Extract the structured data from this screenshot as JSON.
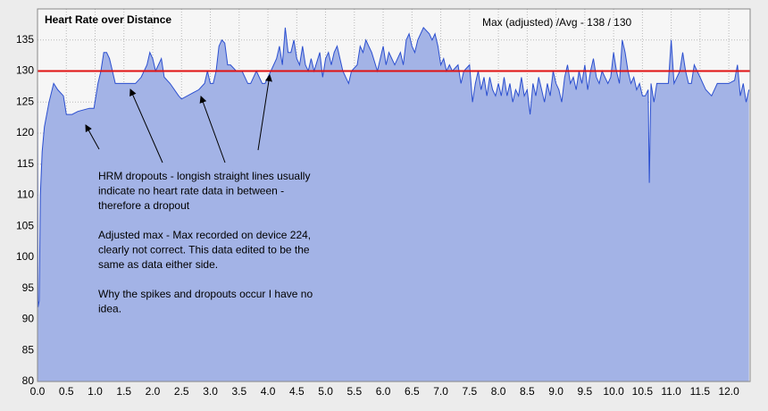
{
  "chart_data": {
    "type": "area",
    "title": "Heart Rate over Distance",
    "stats_label": "Max (adjusted) /Avg - 138 / 130",
    "annotation_paragraphs": [
      [
        "HRM dropouts - longish straight lines usually",
        "indicate no heart rate data in between -",
        "therefore a dropout"
      ],
      [
        "Adjusted max - Max recorded on device 224,",
        "clearly not correct.   This data edited to be the",
        "same as data either side."
      ],
      [
        "Why the spikes and dropouts occur I have no",
        "idea."
      ]
    ],
    "color": "#2b4fd0",
    "fill": "#a3b3e6",
    "avg_line": 130,
    "avg_line_color": "#e01010",
    "grid": true,
    "xlim": [
      0,
      12.37
    ],
    "ylim": [
      80,
      140
    ],
    "xticks": [
      {
        "value": 0,
        "label": "0.0"
      },
      0.5,
      {
        "value": 1,
        "label": "1.0"
      },
      1.5,
      {
        "value": 2,
        "label": "2.0"
      },
      2.5,
      {
        "value": 3,
        "label": "3.0"
      },
      3.5,
      {
        "value": 4,
        "label": "4.0"
      },
      4.5,
      {
        "value": 5,
        "label": "5.0"
      },
      5.5,
      {
        "value": 6,
        "label": "6.0"
      },
      6.5,
      {
        "value": 7,
        "label": "7.0"
      },
      7.5,
      {
        "value": 8,
        "label": "8.0"
      },
      8.5,
      {
        "value": 9,
        "label": "9.0"
      },
      9.5,
      {
        "value": 10,
        "label": "10.0"
      },
      10.5,
      {
        "value": 11,
        "label": "11.0"
      },
      11.5,
      {
        "value": 12,
        "label": "12.0"
      }
    ],
    "yticks": [
      80,
      85,
      90,
      95,
      100,
      105,
      110,
      115,
      120,
      125,
      130,
      135
    ],
    "x": [
      0,
      0.01,
      0.03,
      0.05,
      0.08,
      0.12,
      0.2,
      0.28,
      0.35,
      0.45,
      0.5,
      0.6,
      0.7,
      0.9,
      0.98,
      1.05,
      1.1,
      1.15,
      1.2,
      1.25,
      1.3,
      1.35,
      1.6,
      1.7,
      1.8,
      1.9,
      1.95,
      2,
      2.05,
      2.15,
      2.2,
      2.3,
      2.45,
      2.5,
      2.7,
      2.8,
      2.9,
      2.95,
      3,
      3.05,
      3.1,
      3.15,
      3.2,
      3.25,
      3.3,
      3.35,
      3.45,
      3.55,
      3.65,
      3.7,
      3.8,
      3.9,
      3.95,
      4.05,
      4.15,
      4.2,
      4.25,
      4.3,
      4.35,
      4.4,
      4.45,
      4.5,
      4.55,
      4.6,
      4.65,
      4.7,
      4.75,
      4.8,
      4.9,
      4.95,
      5,
      5.05,
      5.1,
      5.15,
      5.2,
      5.25,
      5.3,
      5.4,
      5.45,
      5.55,
      5.6,
      5.65,
      5.7,
      5.75,
      5.8,
      5.9,
      6,
      6.05,
      6.1,
      6.2,
      6.3,
      6.35,
      6.4,
      6.45,
      6.5,
      6.55,
      6.6,
      6.7,
      6.8,
      6.85,
      6.9,
      6.95,
      7,
      7.05,
      7.1,
      7.15,
      7.2,
      7.3,
      7.35,
      7.4,
      7.5,
      7.55,
      7.6,
      7.65,
      7.7,
      7.75,
      7.8,
      7.85,
      7.9,
      7.95,
      8,
      8.05,
      8.1,
      8.15,
      8.2,
      8.25,
      8.3,
      8.35,
      8.4,
      8.45,
      8.5,
      8.55,
      8.6,
      8.65,
      8.7,
      8.75,
      8.8,
      8.85,
      8.9,
      8.95,
      9,
      9.05,
      9.1,
      9.15,
      9.2,
      9.25,
      9.3,
      9.35,
      9.4,
      9.45,
      9.5,
      9.55,
      9.6,
      9.65,
      9.7,
      9.75,
      9.8,
      9.85,
      9.9,
      9.95,
      10,
      10.05,
      10.1,
      10.15,
      10.2,
      10.25,
      10.3,
      10.35,
      10.4,
      10.45,
      10.5,
      10.55,
      10.6,
      10.62,
      10.65,
      10.7,
      10.75,
      10.85,
      10.95,
      11,
      11.05,
      11.1,
      11.15,
      11.2,
      11.25,
      11.3,
      11.35,
      11.4,
      11.45,
      11.5,
      11.55,
      11.6,
      11.7,
      11.75,
      11.8,
      11.9,
      12,
      12.1,
      12.15,
      12.2,
      12.25,
      12.3,
      12.35
    ],
    "values": [
      128,
      92,
      93,
      110,
      117,
      121,
      125,
      128,
      127,
      126,
      123,
      123,
      123.5,
      124,
      124,
      128,
      130,
      133,
      133,
      132,
      130,
      128,
      128,
      128,
      129,
      131,
      133,
      132,
      130,
      132,
      129,
      128,
      126,
      125.5,
      126.5,
      127,
      128,
      130,
      128,
      128,
      130,
      134,
      135,
      134.5,
      131,
      131,
      130,
      130,
      128,
      128,
      130,
      128,
      128,
      130,
      132,
      134,
      131,
      137,
      133,
      133,
      135,
      132,
      131,
      134,
      131,
      130,
      132,
      130,
      133,
      129,
      132,
      133,
      131,
      133,
      134,
      132,
      130,
      128,
      130,
      131,
      134,
      133,
      135,
      134,
      133,
      130,
      134,
      131,
      133,
      131,
      133,
      131,
      135,
      136,
      134,
      133,
      135,
      137,
      136,
      135,
      136,
      134,
      131,
      132,
      130,
      131,
      130,
      131,
      128,
      130,
      131,
      125,
      128,
      130,
      127,
      129,
      126,
      129,
      127,
      126,
      128,
      126,
      129,
      126,
      128,
      125,
      127,
      126,
      129,
      126,
      127,
      123,
      128,
      126,
      129,
      127,
      125,
      128,
      126,
      130,
      128,
      127,
      125,
      129,
      131,
      128,
      129,
      127,
      130,
      128,
      131,
      127,
      130,
      132,
      129,
      128,
      130,
      129,
      128,
      129,
      133,
      130,
      128,
      135,
      133,
      130,
      128,
      129,
      127,
      128,
      126,
      126,
      127,
      112,
      128,
      125,
      128,
      128,
      128,
      135,
      128,
      129,
      130,
      133,
      130,
      128,
      128,
      131,
      130,
      129,
      128,
      127,
      126,
      127,
      128,
      128,
      128,
      128.5,
      131,
      126,
      128,
      125,
      127
    ]
  }
}
